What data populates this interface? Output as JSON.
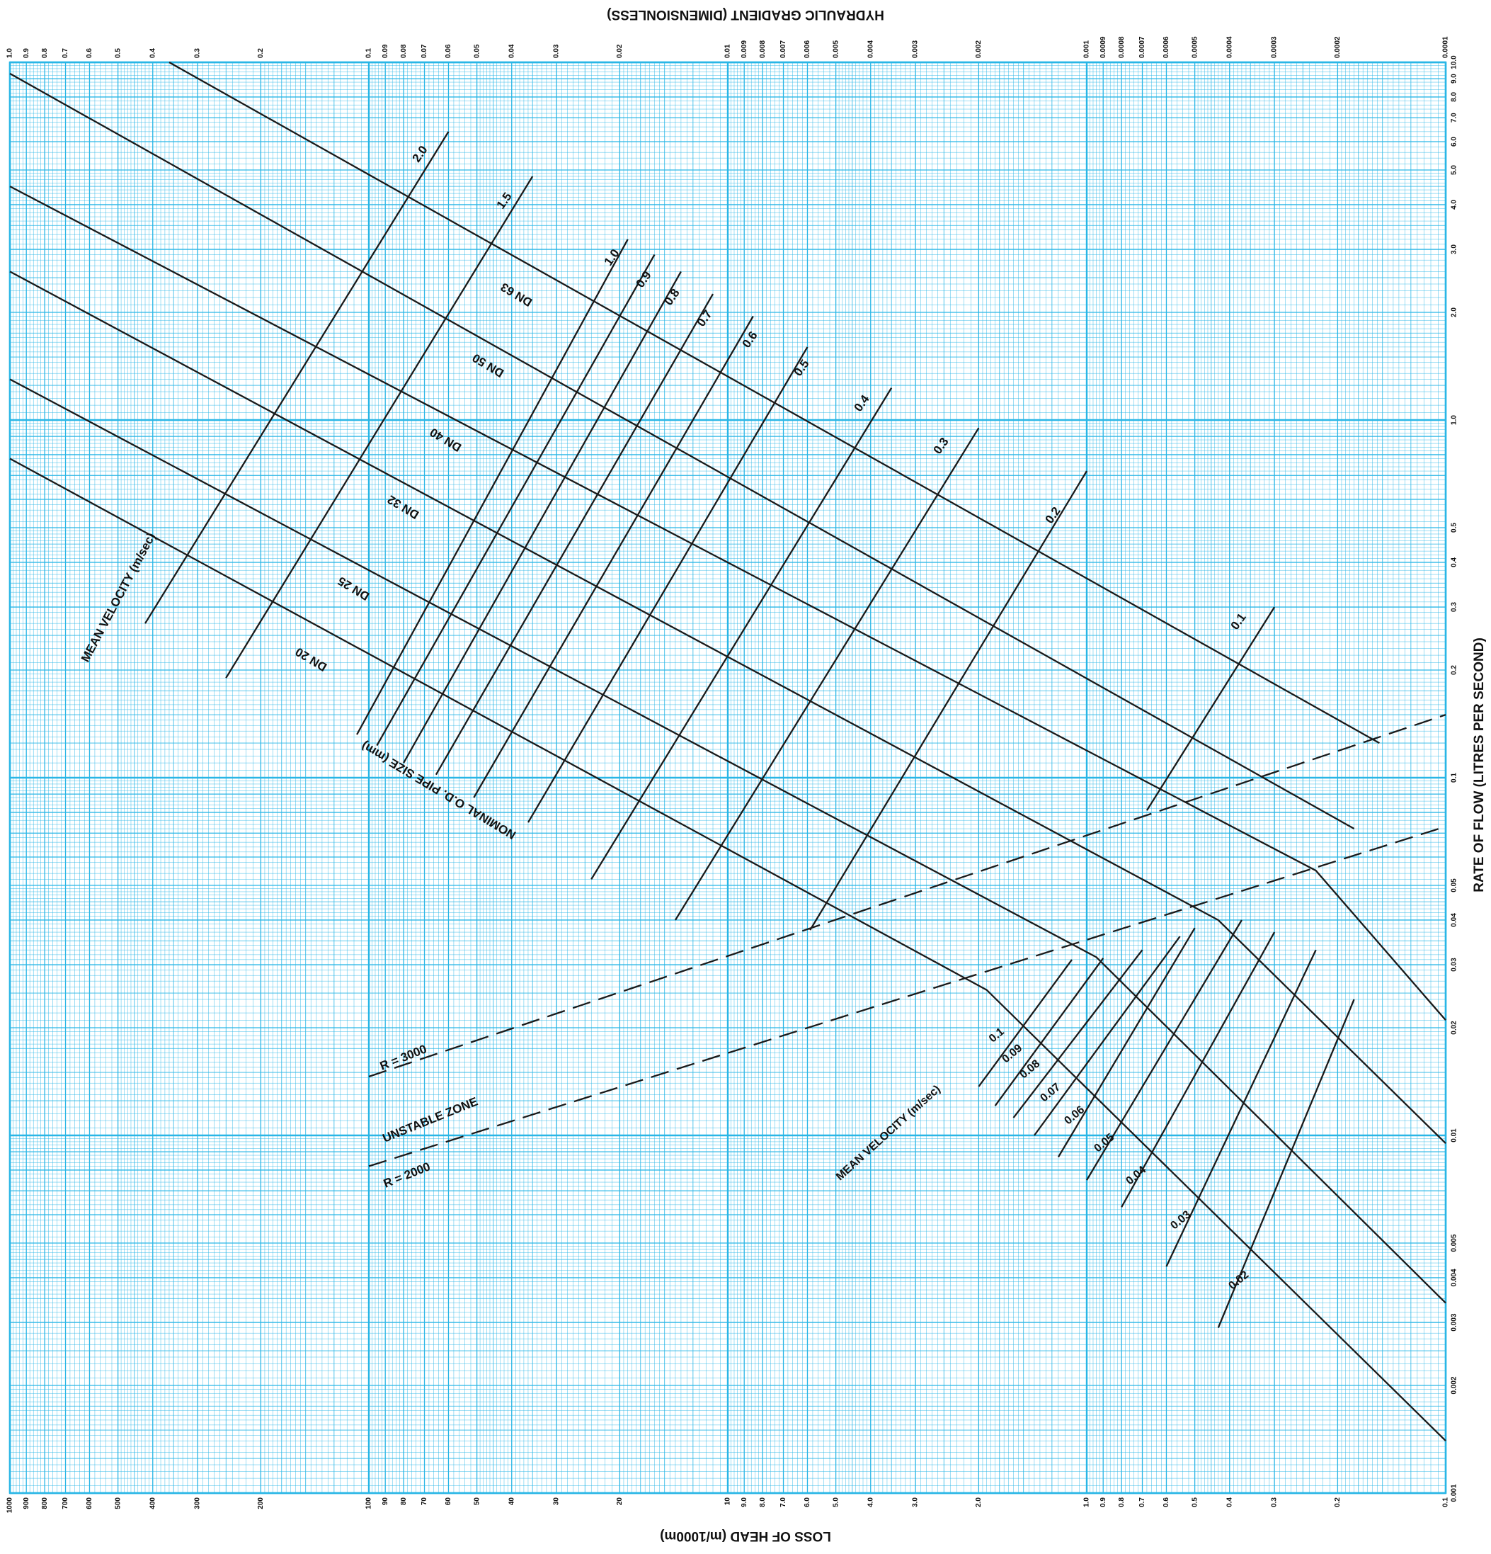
{
  "chart_data": {
    "type": "line",
    "title": "",
    "x_axis_bottom": {
      "label": "LOSS OF HEAD (m/1000m)",
      "scale": "log",
      "range": [
        1000,
        0.1
      ],
      "tick_labels": [
        {
          "v": 1000,
          "t": "1000"
        },
        {
          "v": 900,
          "t": "900"
        },
        {
          "v": 800,
          "t": "800"
        },
        {
          "v": 700,
          "t": "700"
        },
        {
          "v": 600,
          "t": "600"
        },
        {
          "v": 500,
          "t": "500"
        },
        {
          "v": 400,
          "t": "400"
        },
        {
          "v": 300,
          "t": "300"
        },
        {
          "v": 200,
          "t": "200"
        },
        {
          "v": 100,
          "t": "100"
        },
        {
          "v": 90,
          "t": "90"
        },
        {
          "v": 80,
          "t": "80"
        },
        {
          "v": 70,
          "t": "70"
        },
        {
          "v": 60,
          "t": "60"
        },
        {
          "v": 50,
          "t": "50"
        },
        {
          "v": 40,
          "t": "40"
        },
        {
          "v": 30,
          "t": "30"
        },
        {
          "v": 20,
          "t": "20"
        },
        {
          "v": 10,
          "t": "10"
        },
        {
          "v": 9,
          "t": "9.0"
        },
        {
          "v": 8,
          "t": "8.0"
        },
        {
          "v": 7,
          "t": "7.0"
        },
        {
          "v": 6,
          "t": "6.0"
        },
        {
          "v": 5,
          "t": "5.0"
        },
        {
          "v": 4,
          "t": "4.0"
        },
        {
          "v": 3,
          "t": "3.0"
        },
        {
          "v": 2,
          "t": "2.0"
        },
        {
          "v": 1,
          "t": "1.0"
        },
        {
          "v": 0.9,
          "t": "0.9"
        },
        {
          "v": 0.8,
          "t": "0.8"
        },
        {
          "v": 0.7,
          "t": "0.7"
        },
        {
          "v": 0.6,
          "t": "0.6"
        },
        {
          "v": 0.5,
          "t": "0.5"
        },
        {
          "v": 0.4,
          "t": "0.4"
        },
        {
          "v": 0.3,
          "t": "0.3"
        },
        {
          "v": 0.2,
          "t": "0.2"
        },
        {
          "v": 0.1,
          "t": "0.1"
        }
      ]
    },
    "x_axis_top": {
      "label": "HYDRAULIC GRADIENT (DIMENSIONLESS)",
      "scale": "log",
      "range": [
        1.0,
        0.0001
      ],
      "tick_labels": [
        {
          "v": 1.0,
          "t": "1.0"
        },
        {
          "v": 0.9,
          "t": "0.9"
        },
        {
          "v": 0.8,
          "t": "0.8"
        },
        {
          "v": 0.7,
          "t": "0.7"
        },
        {
          "v": 0.6,
          "t": "0.6"
        },
        {
          "v": 0.5,
          "t": "0.5"
        },
        {
          "v": 0.4,
          "t": "0.4"
        },
        {
          "v": 0.3,
          "t": "0.3"
        },
        {
          "v": 0.2,
          "t": "0.2"
        },
        {
          "v": 0.1,
          "t": "0.1"
        },
        {
          "v": 0.09,
          "t": "0.09"
        },
        {
          "v": 0.08,
          "t": "0.08"
        },
        {
          "v": 0.07,
          "t": "0.07"
        },
        {
          "v": 0.06,
          "t": "0.06"
        },
        {
          "v": 0.05,
          "t": "0.05"
        },
        {
          "v": 0.04,
          "t": "0.04"
        },
        {
          "v": 0.03,
          "t": "0.03"
        },
        {
          "v": 0.02,
          "t": "0.02"
        },
        {
          "v": 0.01,
          "t": "0.01"
        },
        {
          "v": 0.009,
          "t": "0.009"
        },
        {
          "v": 0.008,
          "t": "0.008"
        },
        {
          "v": 0.007,
          "t": "0.007"
        },
        {
          "v": 0.006,
          "t": "0.006"
        },
        {
          "v": 0.005,
          "t": "0.005"
        },
        {
          "v": 0.004,
          "t": "0.004"
        },
        {
          "v": 0.003,
          "t": "0.003"
        },
        {
          "v": 0.002,
          "t": "0.002"
        },
        {
          "v": 0.001,
          "t": "0.001"
        },
        {
          "v": 0.0009,
          "t": "0.0009"
        },
        {
          "v": 0.0008,
          "t": "0.0008"
        },
        {
          "v": 0.0007,
          "t": "0.0007"
        },
        {
          "v": 0.0006,
          "t": "0.0006"
        },
        {
          "v": 0.0005,
          "t": "0.0005"
        },
        {
          "v": 0.0004,
          "t": "0.0004"
        },
        {
          "v": 0.0003,
          "t": "0.0003"
        },
        {
          "v": 0.0002,
          "t": "0.0002"
        },
        {
          "v": 0.0001,
          "t": "0.0001"
        }
      ]
    },
    "y_axis": {
      "label": "RATE OF FLOW (LITRES PER SECOND)",
      "scale": "log",
      "range": [
        0.001,
        10.0
      ],
      "tick_labels": [
        {
          "v": 10,
          "t": "10.0"
        },
        {
          "v": 9,
          "t": "9.0"
        },
        {
          "v": 8,
          "t": "8.0"
        },
        {
          "v": 7,
          "t": "7.0"
        },
        {
          "v": 6,
          "t": "6.0"
        },
        {
          "v": 5,
          "t": "5.0"
        },
        {
          "v": 4,
          "t": "4.0"
        },
        {
          "v": 3,
          "t": "3.0"
        },
        {
          "v": 2,
          "t": "2.0"
        },
        {
          "v": 1,
          "t": "1.0"
        },
        {
          "v": 0.5,
          "t": "0.5"
        },
        {
          "v": 0.4,
          "t": "0.4"
        },
        {
          "v": 0.3,
          "t": "0.3"
        },
        {
          "v": 0.2,
          "t": "0.2"
        },
        {
          "v": 0.1,
          "t": "0.1"
        },
        {
          "v": 0.05,
          "t": "0.05"
        },
        {
          "v": 0.04,
          "t": "0.04"
        },
        {
          "v": 0.03,
          "t": "0.03"
        },
        {
          "v": 0.02,
          "t": "0.02"
        },
        {
          "v": 0.01,
          "t": "0.01"
        },
        {
          "v": 0.005,
          "t": "0.005"
        },
        {
          "v": 0.004,
          "t": "0.004"
        },
        {
          "v": 0.003,
          "t": "0.003"
        },
        {
          "v": 0.002,
          "t": "0.002"
        },
        {
          "v": 0.001,
          "t": "0.001"
        }
      ]
    },
    "grid": true,
    "colors": {
      "grid": "#29b6e6",
      "background": "#ffffff",
      "lines": "#1a1a1a"
    },
    "pipe_sizes_label": "NOMINAL O.D. PIPE SIZE (mm)",
    "pipe_sizes": [
      {
        "name": "DN 63",
        "points": [
          [
            360,
            10.0
          ],
          [
            0.153,
            0.125
          ]
        ]
      },
      {
        "name": "DN 50",
        "points": [
          [
            1000,
            9.3
          ],
          [
            0.18,
            0.072
          ]
        ]
      },
      {
        "name": "DN 40",
        "points": [
          [
            1000,
            4.5
          ],
          [
            0.23,
            0.055
          ],
          [
            0.1,
            0.021
          ]
        ]
      },
      {
        "name": "DN 32",
        "points": [
          [
            1000,
            2.6
          ],
          [
            0.43,
            0.04
          ],
          [
            0.1,
            0.0095
          ]
        ]
      },
      {
        "name": "DN 25",
        "points": [
          [
            1000,
            1.3
          ],
          [
            0.94,
            0.0315
          ],
          [
            0.1,
            0.0034
          ]
        ]
      },
      {
        "name": "DN 20",
        "points": [
          [
            1000,
            0.78
          ],
          [
            1.9,
            0.0255
          ],
          [
            0.1,
            0.0014
          ]
        ]
      }
    ],
    "velocity_label": "MEAN VELOCITY (m/sec)",
    "velocity_lines": [
      {
        "name": "2.0",
        "points": [
          [
            420,
            0.27
          ],
          [
            60,
            6.4
          ]
        ]
      },
      {
        "name": "1.5",
        "points": [
          [
            250,
            0.19
          ],
          [
            35,
            4.8
          ]
        ]
      },
      {
        "name": "1.0",
        "points": [
          [
            108,
            0.132
          ],
          [
            19,
            3.2
          ]
        ]
      },
      {
        "name": "0.9",
        "points": [
          [
            95,
            0.123
          ],
          [
            16,
            2.9
          ]
        ]
      },
      {
        "name": "0.8",
        "points": [
          [
            80,
            0.11
          ],
          [
            13.5,
            2.6
          ]
        ]
      },
      {
        "name": "0.7",
        "points": [
          [
            65,
            0.102
          ],
          [
            11,
            2.25
          ]
        ]
      },
      {
        "name": "0.6",
        "points": [
          [
            51,
            0.088
          ],
          [
            8.5,
            1.95
          ]
        ]
      },
      {
        "name": "0.5",
        "points": [
          [
            36,
            0.075
          ],
          [
            6.0,
            1.6
          ]
        ]
      },
      {
        "name": "0.4",
        "points": [
          [
            24,
            0.052
          ],
          [
            3.5,
            1.23
          ]
        ]
      },
      {
        "name": "0.3",
        "points": [
          [
            14,
            0.04
          ],
          [
            2.0,
            0.95
          ]
        ]
      },
      {
        "name": "0.2",
        "points": [
          [
            5.9,
            0.0375
          ],
          [
            1.0,
            0.72
          ]
        ]
      },
      {
        "name": "0.1",
        "points": [
          [
            0.68,
            0.081
          ],
          [
            0.3,
            0.3
          ]
        ]
      }
    ],
    "low_velocity_label": "MEAN VELOCITY (m/sec)",
    "low_velocity_lines": [
      {
        "name": "0.1",
        "points": [
          [
            2.0,
            0.0137
          ],
          [
            1.1,
            0.031
          ]
        ]
      },
      {
        "name": "0.09",
        "points": [
          [
            1.8,
            0.0121
          ],
          [
            0.9,
            0.0313
          ]
        ]
      },
      {
        "name": "0.08",
        "points": [
          [
            1.6,
            0.0112
          ],
          [
            0.7,
            0.033
          ]
        ]
      },
      {
        "name": "0.07",
        "points": [
          [
            1.4,
            0.01
          ],
          [
            0.55,
            0.036
          ]
        ]
      },
      {
        "name": "0.06",
        "points": [
          [
            1.2,
            0.0087
          ],
          [
            0.5,
            0.038
          ]
        ]
      },
      {
        "name": "0.05",
        "points": [
          [
            1.0,
            0.0075
          ],
          [
            0.37,
            0.04
          ]
        ]
      },
      {
        "name": "0.04",
        "points": [
          [
            0.8,
            0.0063
          ],
          [
            0.3,
            0.037
          ]
        ]
      },
      {
        "name": "0.03",
        "points": [
          [
            0.6,
            0.0043
          ],
          [
            0.23,
            0.033
          ]
        ]
      },
      {
        "name": "0.02",
        "points": [
          [
            0.43,
            0.0029
          ],
          [
            0.18,
            0.024
          ]
        ]
      }
    ],
    "reynolds_lines": [
      {
        "name": "R = 3000",
        "dashed": true,
        "points": [
          [
            100,
            0.0146
          ],
          [
            0.1,
            0.15
          ]
        ]
      },
      {
        "name": "R = 2000",
        "dashed": true,
        "points": [
          [
            100,
            0.0082
          ],
          [
            0.1,
            0.073
          ]
        ]
      }
    ],
    "zone_label": "UNSTABLE ZONE"
  }
}
